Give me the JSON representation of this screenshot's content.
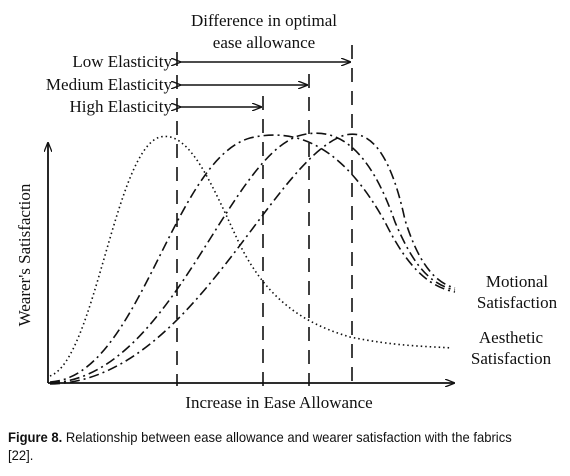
{
  "figure": {
    "header_line1": "Difference in optimal",
    "header_line2": "ease allowance",
    "elasticity_labels": [
      "Low Elasticity",
      "Medium Elasticity",
      "High Elasticity"
    ],
    "y_axis_label": "Wearer's Satisfaction",
    "x_axis_label": "Increase in Ease Allowance",
    "curve_labels": {
      "motional_line1": "Motional",
      "motional_line2": "Satisfaction",
      "aesthetic_line1": "Aesthetic",
      "aesthetic_line2": "Satisfaction"
    }
  },
  "caption": {
    "prefix": "Figure 8.",
    "text": " Relationship between ease allowance and wearer satisfaction with the fabrics [22]."
  }
}
